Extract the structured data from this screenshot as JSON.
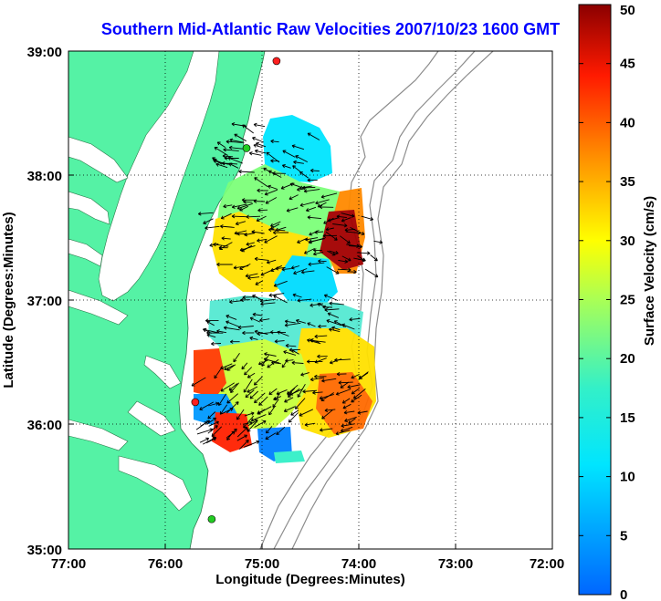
{
  "title": "Southern Mid-Atlantic Raw Velocities 2007/10/23 1600 GMT",
  "xlabel": "Longitude (Degrees:Minutes)",
  "ylabel": "Latitude (Degrees:Minutes)",
  "x_ticks": [
    "77:00",
    "76:00",
    "75:00",
    "74:00",
    "73:00",
    "72:00"
  ],
  "y_ticks": [
    "39:00",
    "38:00",
    "37:00",
    "36:00",
    "35:00"
  ],
  "colorbar": {
    "label": "Surface Velocity (cm/s)",
    "ticks": [
      "0",
      "5",
      "10",
      "15",
      "20",
      "25",
      "30",
      "35",
      "40",
      "45",
      "50"
    ],
    "range": [
      0,
      50
    ],
    "colormap": "jet"
  },
  "colors": {
    "land": "#55f2a5",
    "title": "#0000ff",
    "contour": "#8c8c8c",
    "station_green": "#22cc22",
    "station_red": "#ff2020"
  },
  "map_extent": {
    "lon": [
      -77,
      -72
    ],
    "lat": [
      35,
      39
    ]
  },
  "stations": [
    {
      "lon": -74.85,
      "lat": 38.92,
      "status": "red"
    },
    {
      "lon": -75.16,
      "lat": 38.22,
      "status": "green"
    },
    {
      "lon": -75.69,
      "lat": 36.18,
      "status": "red"
    },
    {
      "lon": -75.52,
      "lat": 35.24,
      "status": "green"
    }
  ]
}
